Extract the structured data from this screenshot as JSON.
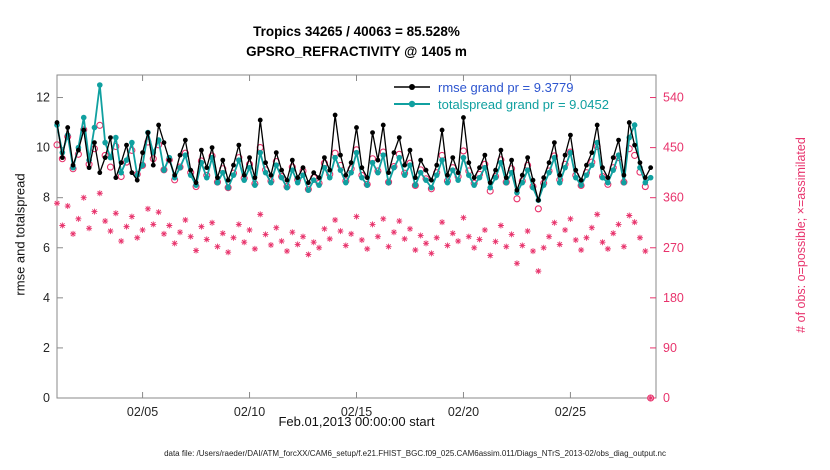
{
  "caption": "data file: /Users/raeder/DAI/ATM_forcXX/CAM6_setup/f.e21.FHIST_BGC.f09_025.CAM6assim.011/Diags_NTrS_2013-02/obs_diag_output.nc",
  "colors": {
    "rmse": "#000000",
    "totalspread": "#10a0a0",
    "obs": "#e8336c",
    "legend_rmse_text": "#2d55cf",
    "axis_box": "#8a8a8a"
  },
  "chart_data": {
    "type": "line",
    "title": "Tropics 34265 / 40063 = 85.528%",
    "subtitle": "GPSRO_REFRACTIVITY @ 1405 m",
    "xlabel": "Feb.01,2013 00:00:00 start",
    "ylabel_left": "rmse and totalspread",
    "ylabel_right": "# of obs: o=possible; ×=assimilated",
    "xlim": [
      0,
      28
    ],
    "ylim_left": [
      0,
      12.9
    ],
    "ylim_right": [
      0,
      580.5
    ],
    "grid": false,
    "legend_position": "top-right-inside",
    "x_ticks": [
      {
        "pos": 4,
        "label": "02/05"
      },
      {
        "pos": 9,
        "label": "02/10"
      },
      {
        "pos": 14,
        "label": "02/15"
      },
      {
        "pos": 19,
        "label": "02/20"
      },
      {
        "pos": 24,
        "label": "02/25"
      }
    ],
    "y_ticks_left": [
      0,
      2,
      4,
      6,
      8,
      10,
      12
    ],
    "y_ticks_right": [
      0,
      90,
      180,
      270,
      360,
      450,
      540
    ],
    "x_step_days": 0.25,
    "legend": [
      {
        "series": "rmse",
        "label": "rmse grand pr = 9.3779"
      },
      {
        "series": "totalspread",
        "label": "totalspread grand pr = 9.0452"
      }
    ],
    "series": [
      {
        "name": "rmse",
        "color": "#000000",
        "axis": "left",
        "grand_mean": 9.3779,
        "values": [
          11.0,
          9.6,
          10.8,
          9.3,
          9.9,
          10.7,
          9.2,
          10.2,
          9.0,
          9.6,
          10.4,
          8.8,
          9.4,
          10.1,
          9.0,
          8.7,
          9.8,
          10.6,
          9.3,
          10.9,
          10.2,
          9.5,
          8.9,
          9.7,
          10.3,
          9.1,
          8.6,
          9.9,
          9.2,
          10.0,
          8.8,
          9.5,
          8.7,
          9.3,
          10.1,
          8.9,
          9.6,
          8.8,
          11.1,
          9.4,
          8.9,
          9.8,
          9.1,
          8.7,
          9.5,
          8.8,
          9.2,
          8.6,
          9.0,
          8.8,
          9.6,
          9.1,
          11.3,
          9.7,
          8.9,
          9.4,
          10.8,
          9.2,
          8.8,
          10.6,
          9.5,
          10.9,
          9.0,
          9.8,
          10.4,
          9.3,
          9.9,
          8.8,
          9.5,
          9.1,
          8.7,
          9.3,
          10.7,
          8.9,
          9.6,
          9.0,
          11.2,
          9.4,
          8.8,
          9.2,
          9.7,
          8.6,
          9.1,
          9.9,
          8.8,
          9.5,
          8.3,
          8.9,
          9.6,
          8.7,
          7.9,
          8.8,
          9.4,
          10.2,
          8.9,
          9.7,
          10.5,
          9.1,
          8.7,
          9.3,
          9.8,
          10.9,
          9.2,
          8.8,
          9.6,
          10.3,
          8.9,
          11.0,
          10.1,
          9.4,
          8.8,
          9.2
        ]
      },
      {
        "name": "totalspread",
        "color": "#10a0a0",
        "axis": "left",
        "grand_mean": 9.0452,
        "values": [
          10.9,
          9.8,
          10.5,
          9.2,
          10.0,
          11.2,
          9.5,
          10.8,
          12.5,
          10.2,
          9.6,
          10.4,
          9.0,
          9.5,
          10.2,
          8.9,
          9.3,
          10.6,
          9.8,
          10.3,
          9.1,
          9.6,
          8.8,
          9.2,
          9.7,
          8.9,
          8.5,
          9.4,
          8.8,
          9.6,
          8.6,
          9.0,
          8.4,
          8.9,
          9.5,
          8.7,
          9.2,
          8.5,
          9.8,
          9.0,
          8.6,
          9.3,
          8.8,
          8.4,
          9.1,
          8.6,
          8.9,
          8.3,
          8.7,
          8.5,
          9.2,
          8.8,
          9.6,
          9.1,
          8.6,
          9.0,
          9.8,
          8.8,
          8.5,
          9.4,
          9.0,
          9.7,
          8.6,
          9.2,
          9.6,
          8.9,
          9.3,
          8.5,
          9.0,
          8.7,
          8.4,
          8.9,
          9.5,
          8.6,
          9.1,
          8.7,
          9.6,
          8.9,
          8.5,
          8.8,
          9.2,
          8.4,
          8.8,
          9.4,
          8.6,
          9.0,
          8.2,
          8.6,
          9.1,
          8.4,
          7.9,
          8.5,
          9.0,
          9.6,
          8.6,
          9.2,
          9.8,
          8.8,
          8.5,
          8.9,
          9.3,
          10.2,
          8.8,
          8.6,
          9.1,
          9.7,
          8.6,
          10.4,
          10.9,
          9.2,
          8.6,
          8.8
        ]
      }
    ],
    "obs_counts": [
      {
        "name": "possible",
        "marker": "o",
        "color": "#e8336c",
        "axis": "right",
        "values": [
          455,
          430,
          470,
          412,
          438,
          482,
          420,
          448,
          490,
          436,
          415,
          452,
          398,
          424,
          445,
          402,
          418,
          460,
          430,
          455,
          410,
          428,
          392,
          415,
          440,
          405,
          380,
          426,
          400,
          435,
          388,
          412,
          378,
          404,
          432,
          395,
          420,
          385,
          450,
          410,
          390,
          425,
          398,
          380,
          415,
          392,
          408,
          375,
          396,
          386,
          422,
          402,
          440,
          418,
          390,
          412,
          446,
          400,
          384,
          430,
          408,
          442,
          388,
          416,
          438,
          404,
          422,
          382,
          410,
          394,
          376,
          405,
          436,
          390,
          414,
          398,
          444,
          408,
          386,
          402,
          420,
          372,
          398,
          428,
          388,
          412,
          358,
          390,
          418,
          380,
          340,
          386,
          408,
          435,
          392,
          420,
          442,
          400,
          382,
          405,
          424,
          452,
          398,
          384,
          414,
          432,
          388,
          448,
          436,
          406,
          380,
          0
        ]
      },
      {
        "name": "assimilated",
        "marker": "*",
        "color": "#e8336c",
        "axis": "right",
        "values": [
          350,
          310,
          345,
          295,
          322,
          360,
          305,
          335,
          368,
          318,
          300,
          332,
          282,
          308,
          326,
          288,
          302,
          340,
          312,
          334,
          295,
          310,
          278,
          298,
          320,
          290,
          265,
          308,
          285,
          315,
          272,
          296,
          262,
          288,
          312,
          280,
          302,
          268,
          330,
          294,
          275,
          306,
          282,
          264,
          298,
          276,
          290,
          258,
          280,
          270,
          304,
          286,
          320,
          300,
          274,
          295,
          326,
          284,
          268,
          312,
          290,
          322,
          272,
          298,
          318,
          286,
          304,
          266,
          292,
          278,
          260,
          288,
          316,
          274,
          296,
          282,
          324,
          290,
          270,
          285,
          302,
          256,
          281,
          310,
          272,
          294,
          242,
          274,
          300,
          264,
          228,
          270,
          290,
          315,
          276,
          302,
          322,
          284,
          266,
          288,
          306,
          330,
          280,
          268,
          296,
          312,
          272,
          328,
          316,
          288,
          264,
          0
        ]
      }
    ]
  }
}
